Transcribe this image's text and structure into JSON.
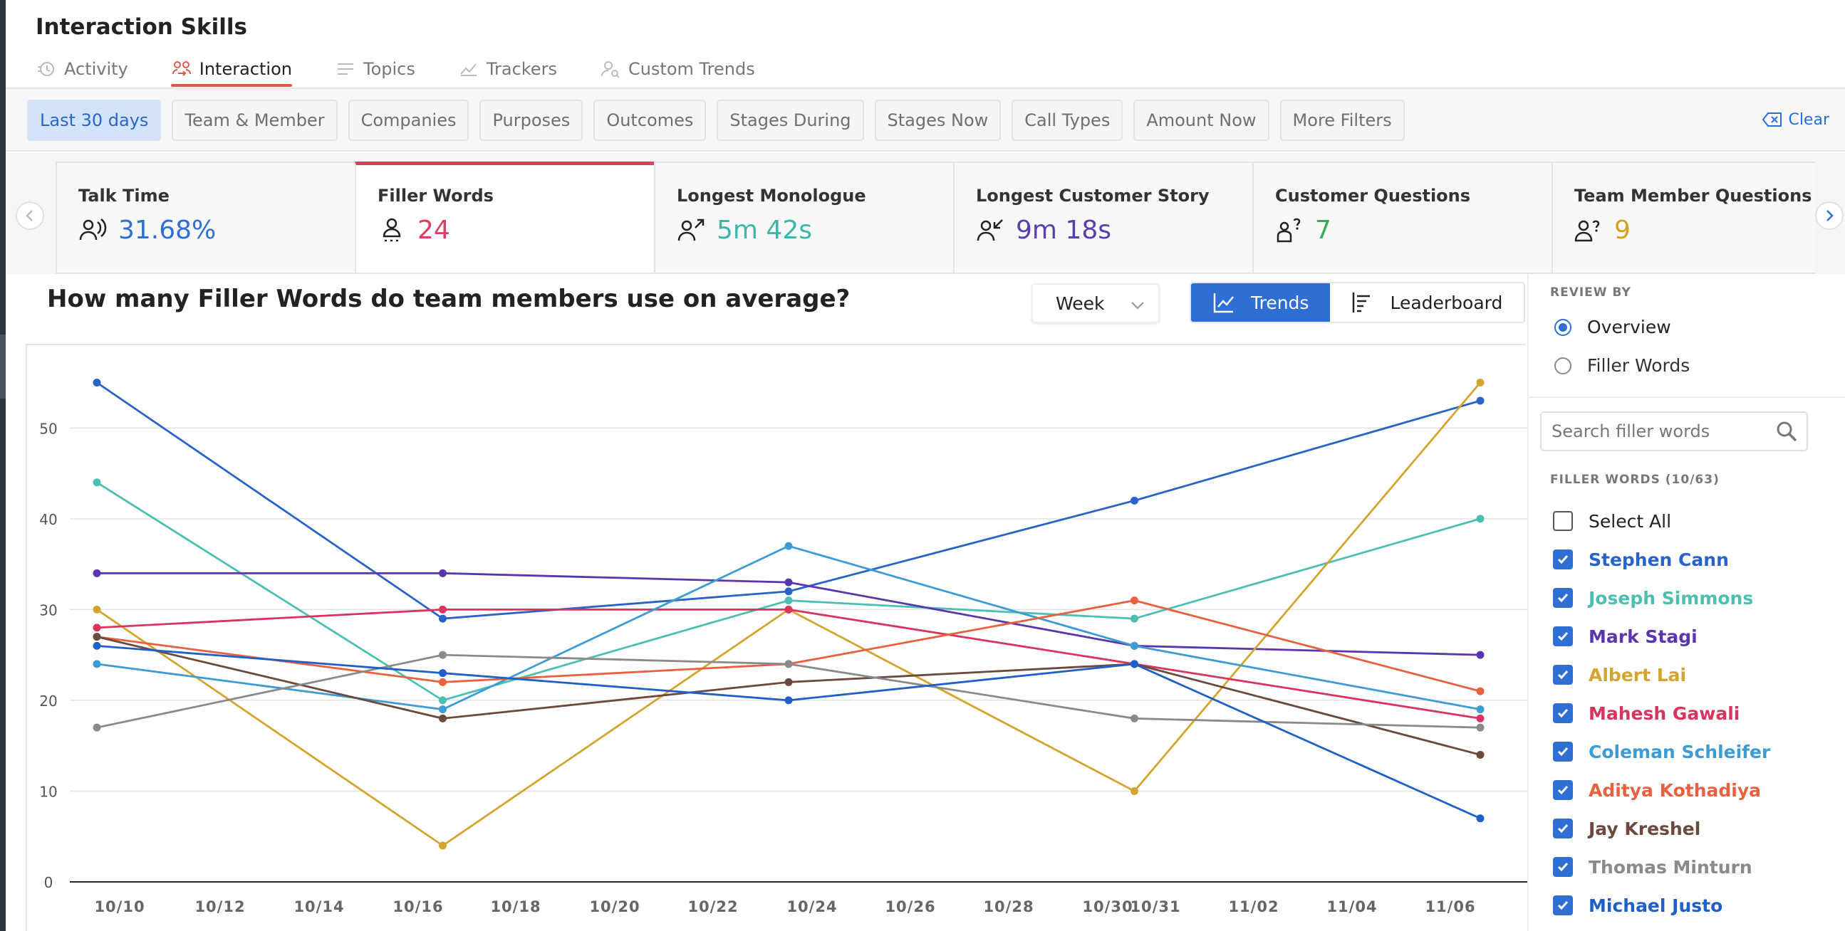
{
  "app": {
    "title": "Interaction Skills"
  },
  "nav": {
    "tabs": [
      {
        "label": "Activity",
        "icon": "clock-icon",
        "active": false
      },
      {
        "label": "Interaction",
        "icon": "people-icon",
        "active": true
      },
      {
        "label": "Topics",
        "icon": "list-icon",
        "active": false
      },
      {
        "label": "Trackers",
        "icon": "tracker-icon",
        "active": false
      },
      {
        "label": "Custom Trends",
        "icon": "custom-trends-icon",
        "active": false
      }
    ]
  },
  "filters": {
    "items": [
      {
        "label": "Last 30 days",
        "active": true
      },
      {
        "label": "Team & Member",
        "active": false
      },
      {
        "label": "Companies",
        "active": false
      },
      {
        "label": "Purposes",
        "active": false
      },
      {
        "label": "Outcomes",
        "active": false
      },
      {
        "label": "Stages During",
        "active": false
      },
      {
        "label": "Stages Now",
        "active": false
      },
      {
        "label": "Call Types",
        "active": false
      },
      {
        "label": "Amount Now",
        "active": false
      },
      {
        "label": "More Filters",
        "active": false
      }
    ],
    "clear_label": "Clear"
  },
  "metrics": [
    {
      "label": "Talk Time",
      "value": "31.68%",
      "color": "#2f6fd4",
      "icon": "talk-time-icon",
      "active": false
    },
    {
      "label": "Filler Words",
      "value": "24",
      "color": "#e03c5f",
      "icon": "filler-words-icon",
      "active": true
    },
    {
      "label": "Longest Monologue",
      "value": "5m 42s",
      "color": "#3db5a9",
      "icon": "monologue-icon",
      "active": false
    },
    {
      "label": "Longest Customer Story",
      "value": "9m 18s",
      "color": "#5a3eb0",
      "icon": "customer-story-icon",
      "active": false
    },
    {
      "label": "Customer Questions",
      "value": "7",
      "color": "#3aaa55",
      "icon": "customer-questions-icon",
      "active": false
    },
    {
      "label": "Team Member Questions",
      "value": "9",
      "color": "#d6a020",
      "icon": "team-questions-icon",
      "active": false
    }
  ],
  "chart_header": {
    "question": "How many Filler Words do team members use on average?",
    "period": "Week",
    "view_trends": "Trends",
    "view_leaderboard": "Leaderboard"
  },
  "chart_data": {
    "type": "line",
    "x_ticks": [
      "10/10",
      "10/12",
      "10/14",
      "10/16",
      "10/18",
      "10/20",
      "10/22",
      "10/24",
      "10/26",
      "10/28",
      "10/30",
      "10/31",
      "11/02",
      "11/04",
      "11/06"
    ],
    "x_points": [
      "10/09",
      "10/16",
      "10/23",
      "10/30",
      "11/06"
    ],
    "ylim": [
      0,
      57
    ],
    "y_ticks": [
      0,
      10,
      20,
      30,
      40,
      50
    ],
    "grid": true,
    "series": [
      {
        "name": "Stephen Cann",
        "color": "#2a63c8",
        "values": [
          55,
          29,
          32,
          42,
          53
        ]
      },
      {
        "name": "Joseph Simmons",
        "color": "#4dbfb2",
        "values": [
          44,
          20,
          31,
          29,
          40
        ]
      },
      {
        "name": "Mark Stagi",
        "color": "#5b35ae",
        "values": [
          34,
          34,
          33,
          26,
          25
        ]
      },
      {
        "name": "Albert Lai",
        "color": "#d4a52e",
        "values": [
          30,
          4,
          30,
          10,
          55
        ]
      },
      {
        "name": "Mahesh Gawali",
        "color": "#d9335e",
        "values": [
          28,
          30,
          30,
          24,
          18
        ]
      },
      {
        "name": "Coleman Schleifer",
        "color": "#3d9bd6",
        "values": [
          24,
          19,
          37,
          26,
          19
        ]
      },
      {
        "name": "Aditya Kothadiya",
        "color": "#e8603e",
        "values": [
          27,
          22,
          24,
          31,
          21
        ]
      },
      {
        "name": "Jay Kreshel",
        "color": "#6b4a3e",
        "values": [
          27,
          18,
          22,
          24,
          14
        ]
      },
      {
        "name": "Thomas Minturn",
        "color": "#8a8a8a",
        "values": [
          17,
          25,
          24,
          18,
          17
        ]
      },
      {
        "name": "Michael Justo",
        "color": "#1f5fc7",
        "values": [
          26,
          23,
          20,
          24,
          7
        ]
      }
    ]
  },
  "review": {
    "title": "REVIEW BY",
    "options": [
      {
        "label": "Overview",
        "selected": true
      },
      {
        "label": "Filler Words",
        "selected": false
      }
    ]
  },
  "filler_search": {
    "placeholder": "Search filler words"
  },
  "filler_words": {
    "title": "FILLER WORDS (10/63)",
    "select_all": "Select All"
  }
}
